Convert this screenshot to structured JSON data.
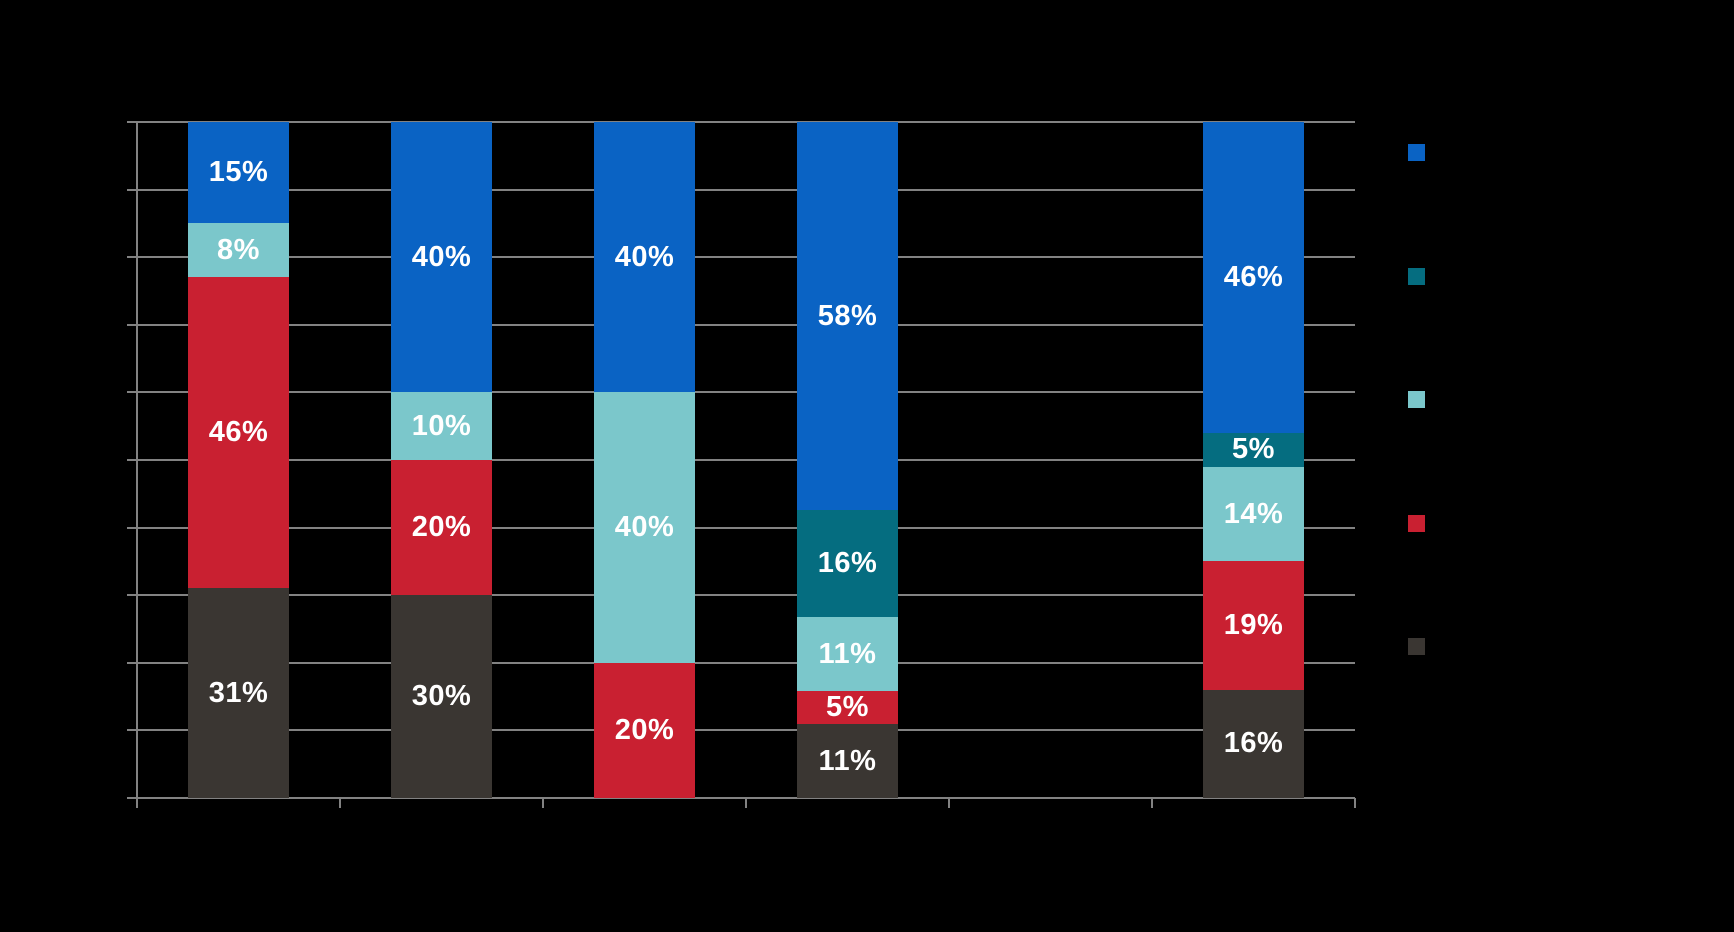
{
  "page": {
    "background": "#000000",
    "grid_color": "#828282",
    "data_label_color": "#FFFFFF"
  },
  "chart_data": {
    "type": "bar",
    "stacked": true,
    "orientation": "vertical",
    "value_format": "percent",
    "title": "",
    "xlabel": "",
    "ylabel": "",
    "ylim": [
      0,
      100
    ],
    "grid": "horizontal",
    "grid_interval_percent": 10,
    "legend_position": "right",
    "categories": [
      "",
      "",
      "",
      "",
      "",
      ""
    ],
    "series": [
      {
        "name": "series-blue",
        "color": "#0A63C4",
        "values": [
          15,
          40,
          40,
          58,
          0,
          46
        ]
      },
      {
        "name": "series-dark-teal",
        "color": "#056D80",
        "values": [
          0,
          0,
          0,
          16,
          0,
          5
        ]
      },
      {
        "name": "series-light-teal",
        "color": "#7BC7CB",
        "values": [
          8,
          10,
          40,
          11,
          0,
          14
        ]
      },
      {
        "name": "series-red",
        "color": "#C92031",
        "values": [
          46,
          20,
          20,
          5,
          0,
          19
        ]
      },
      {
        "name": "series-dark-gray",
        "color": "#3A3632",
        "values": [
          31,
          30,
          0,
          11,
          0,
          16
        ]
      }
    ],
    "data_labels": {
      "suffix": "%",
      "color": "#FFFFFF",
      "shown_for_all_nonzero_segments": true
    },
    "x_axis": {
      "tick_count": 7,
      "tick_labels_visible": false
    },
    "y_axis": {
      "tick_labels_visible": false
    }
  }
}
